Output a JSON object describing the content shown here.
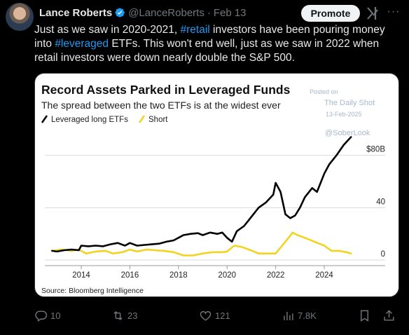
{
  "tweet": {
    "author_name": "Lance Roberts",
    "handle": "@LanceRoberts",
    "date": "Feb 13",
    "promote_label": "Promote",
    "text_parts": [
      "Just as we saw in 2020-2021, ",
      "#retail",
      " investors have been pouring money into ",
      "#leveraged",
      " ETFs. This won't end well, just as we saw in 2022 when retail investors were down nearly double the S&P 500."
    ],
    "stats": {
      "replies": "10",
      "reposts": "23",
      "likes": "121",
      "views": "7.8K"
    }
  },
  "colors": {
    "background": "#000000",
    "hashtag": "#1d9bf0",
    "muted": "#71767b",
    "verified": "#1d9bf0",
    "long_series": "#000000",
    "short_series": "#f2d41f"
  },
  "chart_data": {
    "type": "line",
    "title": "Record Assets Parked in Leveraged Funds",
    "subtitle": "The spread between the two ETFs is at the widest ever",
    "source": "Source: Bloomberg Intelligence",
    "watermark": {
      "posted_on": "Posted on",
      "publisher": "The Daily Shot",
      "posted_date": "13-Feb-2025",
      "handle": "@SoberLook"
    },
    "y_ticks": [
      {
        "value": 0,
        "label": "0"
      },
      {
        "value": 40,
        "label": "40"
      },
      {
        "value": 80,
        "label": "$80B"
      }
    ],
    "x_ticks": [
      {
        "value": 2014,
        "label": "2014"
      },
      {
        "value": 2016,
        "label": "2016"
      },
      {
        "value": 2018,
        "label": "2018"
      },
      {
        "value": 2020,
        "label": "2020"
      },
      {
        "value": 2022,
        "label": "2022"
      },
      {
        "value": 2024,
        "label": "2024"
      }
    ],
    "xlim": [
      2012.5,
      2025.7
    ],
    "ylim": [
      0,
      90
    ],
    "grid": true,
    "legend_position": "top-left",
    "series": [
      {
        "name": "Leveraged long ETFs",
        "color": "#000000",
        "x": [
          2012.8,
          2013.0,
          2013.3,
          2013.6,
          2013.9,
          2014.0,
          2014.3,
          2014.6,
          2014.9,
          2015.2,
          2015.5,
          2015.8,
          2016.0,
          2016.3,
          2016.6,
          2016.9,
          2017.2,
          2017.5,
          2017.8,
          2018.0,
          2018.2,
          2018.5,
          2018.8,
          2019.0,
          2019.3,
          2019.6,
          2019.8,
          2020.0,
          2020.2,
          2020.4,
          2020.7,
          2021.0,
          2021.3,
          2021.6,
          2021.9,
          2022.0,
          2022.2,
          2022.4,
          2022.6,
          2022.8,
          2023.0,
          2023.2,
          2023.5,
          2023.7,
          2024.0,
          2024.2,
          2024.5,
          2024.8,
          2025.1
        ],
        "y": [
          7,
          6.5,
          7.5,
          8,
          7.5,
          11,
          10.5,
          11,
          10.5,
          12,
          13,
          11,
          13,
          11,
          11.5,
          12,
          12.5,
          14,
          15,
          17,
          19,
          20,
          20.5,
          19,
          21,
          20,
          21,
          17,
          14,
          22,
          26,
          33,
          40,
          44,
          50,
          59,
          52,
          35,
          32,
          34,
          40,
          48,
          55,
          52,
          66,
          73,
          80,
          88,
          94
        ]
      },
      {
        "name": "Short",
        "color": "#f2d41f",
        "x": [
          2012.8,
          2013.2,
          2013.6,
          2013.9,
          2014.2,
          2014.6,
          2015.0,
          2015.3,
          2015.7,
          2016.0,
          2016.3,
          2016.7,
          2017.0,
          2017.4,
          2017.8,
          2018.2,
          2018.6,
          2019.0,
          2019.4,
          2019.8,
          2020.0,
          2020.3,
          2020.6,
          2020.9,
          2021.3,
          2021.7,
          2022.0,
          2022.4,
          2022.7,
          2022.9,
          2023.2,
          2023.6,
          2024.0,
          2024.3,
          2024.6,
          2024.9,
          2025.1
        ],
        "y": [
          7,
          8,
          7,
          8,
          5,
          6.5,
          7,
          5,
          6,
          8,
          6.5,
          8,
          7.5,
          7,
          6,
          3.5,
          3.5,
          5,
          6,
          6,
          6.5,
          11,
          10,
          8,
          5,
          5,
          5,
          14,
          21,
          19,
          17,
          14,
          11,
          7,
          7,
          6,
          5
        ]
      }
    ]
  }
}
